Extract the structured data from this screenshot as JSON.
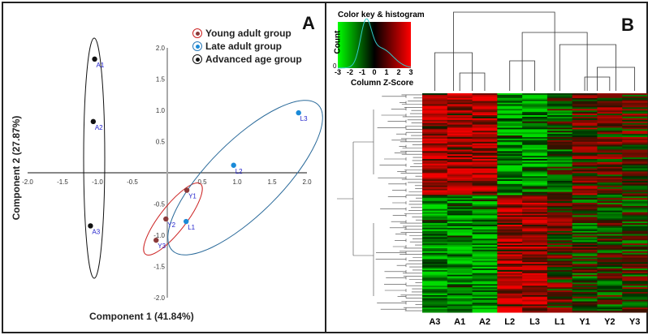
{
  "chart_data": [
    {
      "type": "scatter",
      "panel_label": "A",
      "xlabel": "Component 1 (41.84%)",
      "ylabel": "Component 2 (27.87%)",
      "xlim": [
        -2.0,
        2.0
      ],
      "ylim": [
        -2.0,
        2.0
      ],
      "xticks": [
        "-2.0",
        "-1.5",
        "-1.0",
        "-0.5",
        "0.5",
        "1.0",
        "1.5",
        "2.0"
      ],
      "xtick_values": [
        -2,
        -1.5,
        -1,
        -0.5,
        0.5,
        1,
        1.5,
        2
      ],
      "yticks": [
        "2.0",
        "1.5",
        "1.0",
        "0.5",
        "-0.5",
        "-1.0",
        "-1.5",
        "-2.0"
      ],
      "ytick_values": [
        2,
        1.5,
        1,
        0.5,
        -0.5,
        -1,
        -1.5,
        -2
      ],
      "legend": [
        {
          "label": "Young adult group",
          "color": "#cc2222",
          "fill": "#8b3a3a"
        },
        {
          "label": "Late adult group",
          "color": "#2a7ab8",
          "fill": "#1a8ad8"
        },
        {
          "label": "Advanced age group",
          "color": "#111111",
          "fill": "#111111"
        }
      ],
      "points": [
        {
          "label": "A1",
          "x": -1.04,
          "y": 1.82,
          "group": 2
        },
        {
          "label": "A2",
          "x": -1.06,
          "y": 0.82,
          "group": 2
        },
        {
          "label": "A3",
          "x": -1.1,
          "y": -0.85,
          "group": 2
        },
        {
          "label": "Y1",
          "x": 0.28,
          "y": -0.28,
          "group": 0
        },
        {
          "label": "Y2",
          "x": -0.02,
          "y": -0.74,
          "group": 0
        },
        {
          "label": "Y3",
          "x": -0.16,
          "y": -1.08,
          "group": 0
        },
        {
          "label": "L1",
          "x": 0.27,
          "y": -0.78,
          "group": 1
        },
        {
          "label": "L2",
          "x": 0.95,
          "y": 0.12,
          "group": 1
        },
        {
          "label": "L3",
          "x": 1.88,
          "y": 0.96,
          "group": 1
        }
      ]
    },
    {
      "type": "heatmap",
      "panel_label": "B",
      "columns": [
        "A3",
        "A1",
        "A2",
        "L2",
        "L3",
        "L1",
        "Y1",
        "Y2",
        "Y3"
      ],
      "color_key": {
        "title": "Color key & histogram",
        "xlabel": "Column Z-Score",
        "ylabel": "Count",
        "y_tick": "0",
        "ticks": [
          "-3",
          "-2",
          "-1",
          "0",
          "1",
          "2",
          "3"
        ],
        "low": "#00ff00",
        "mid": "#000000",
        "high": "#ff0000"
      }
    }
  ]
}
